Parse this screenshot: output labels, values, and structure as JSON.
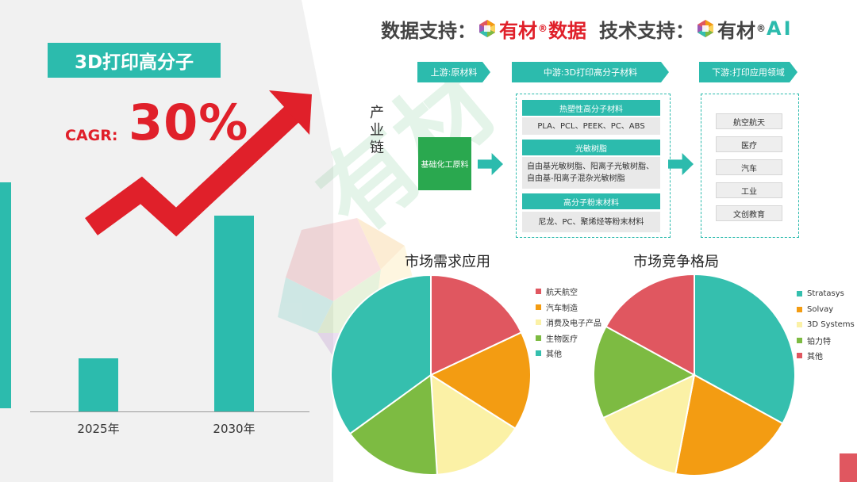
{
  "header": {
    "data_label": "数据支持：",
    "data_brand": "有材",
    "data_brand_suffix": "数据",
    "tech_label": "技术支持：",
    "tech_brand": "有材",
    "tech_brand_suffix": "AI",
    "registered_mark": "®"
  },
  "left": {
    "title": "3D打印高分子",
    "cagr_label": "CAGR:",
    "cagr_value": "30%"
  },
  "chain": {
    "vertical_label": "产业链",
    "stages": [
      "上游:原材料",
      "中游:3D打印高分子材料",
      "下游:打印应用领域"
    ],
    "raw_material": "基础化工原料",
    "groups": [
      {
        "title": "热塑性高分子材料",
        "body": "PLA、PCL、PEEK、PC、ABS"
      },
      {
        "title": "光敏树脂",
        "body": "自由基光敏树脂、阳离子光敏树脂、自由基-阳离子混杂光敏树脂"
      },
      {
        "title": "高分子粉末材料",
        "body": "尼龙、PC、聚烯烃等粉末材料"
      }
    ],
    "applications": [
      "航空航天",
      "医疗",
      "汽车",
      "工业",
      "文创教育"
    ]
  },
  "colors": {
    "teal": "#2cbbad",
    "red": "#e0202a",
    "green": "#2aa84f",
    "pie_red": "#e05760",
    "pie_orange": "#f39c12",
    "pie_yellow": "#fbf1a6",
    "pie_green": "#7dbb42",
    "pie_teal": "#35bfae"
  },
  "chart_data": [
    {
      "type": "bar",
      "categories": [
        "2025年",
        "2030年"
      ],
      "values": [
        1,
        3.71
      ],
      "ylim": [
        0,
        4.5
      ],
      "title": "",
      "xlabel": "",
      "ylabel": ""
    },
    {
      "type": "pie",
      "title": "市场需求应用",
      "labels": [
        "航天航空",
        "汽车制造",
        "消费及电子产品",
        "生物医疗",
        "其他"
      ],
      "values": [
        18,
        16,
        15,
        16,
        35
      ],
      "colors": [
        "#e05760",
        "#f39c12",
        "#fbf1a6",
        "#7dbb42",
        "#35bfae"
      ],
      "legend": "right"
    },
    {
      "type": "pie",
      "title": "市场竞争格局",
      "labels": [
        "Stratasys",
        "Solvay",
        "3D Systems",
        "铂力特",
        "其他"
      ],
      "values": [
        33,
        20,
        15,
        15,
        17
      ],
      "colors": [
        "#35bfae",
        "#f39c12",
        "#fbf1a6",
        "#7dbb42",
        "#e05760"
      ],
      "legend": "right"
    }
  ]
}
